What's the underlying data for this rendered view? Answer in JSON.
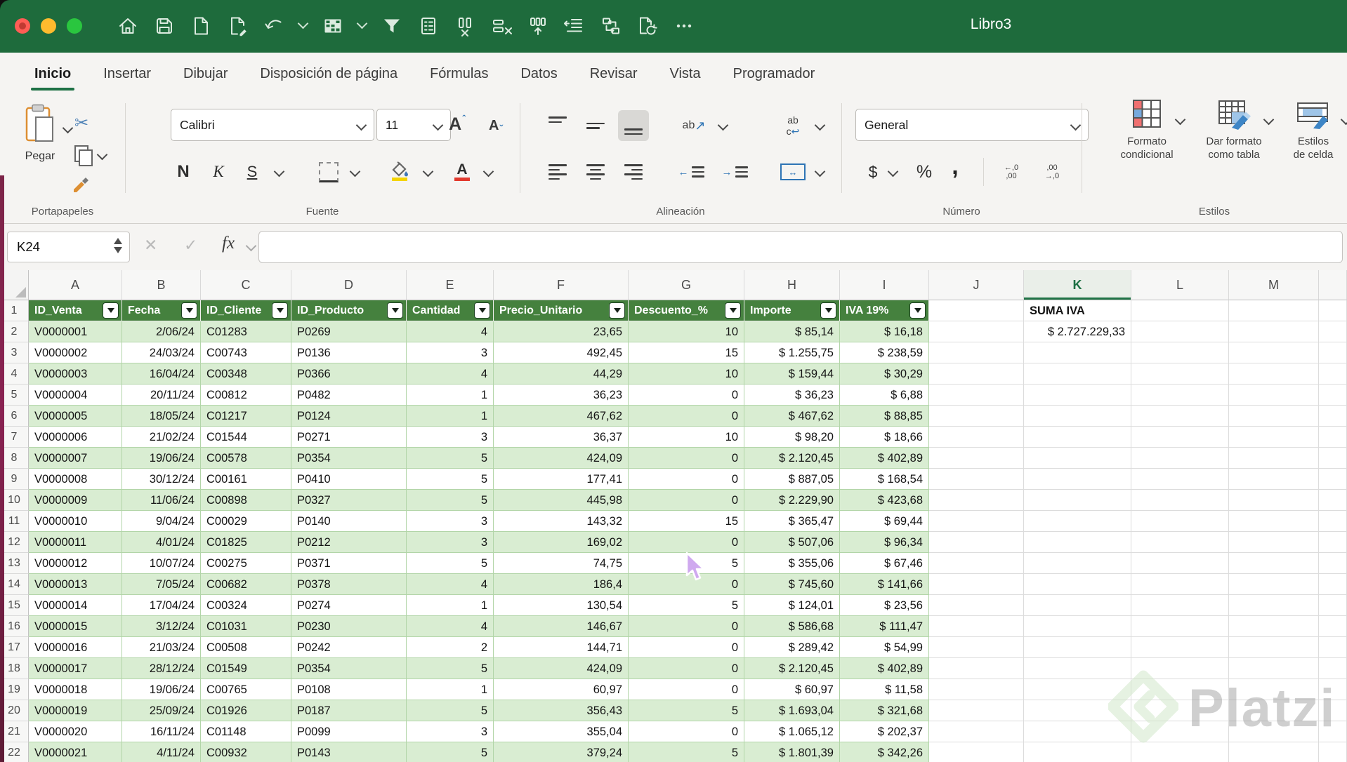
{
  "window": {
    "title": "Libro3"
  },
  "quick_toolbar": {
    "icons": [
      "home",
      "save",
      "new-document",
      "save-as",
      "undo",
      "border-grid",
      "filter",
      "form",
      "delete-column",
      "delete-row",
      "insert-column",
      "decrease-indent",
      "paste-transpose",
      "refresh-document",
      "more"
    ]
  },
  "ribbon_tabs": [
    {
      "label": "Inicio",
      "active": true
    },
    {
      "label": "Insertar",
      "active": false
    },
    {
      "label": "Dibujar",
      "active": false
    },
    {
      "label": "Disposición de página",
      "active": false
    },
    {
      "label": "Fórmulas",
      "active": false
    },
    {
      "label": "Datos",
      "active": false
    },
    {
      "label": "Revisar",
      "active": false
    },
    {
      "label": "Vista",
      "active": false
    },
    {
      "label": "Programador",
      "active": false
    }
  ],
  "ribbon": {
    "clipboard": {
      "paste": "Pegar",
      "group": "Portapapeles"
    },
    "font": {
      "family": "Calibri",
      "size": "11",
      "bold": "N",
      "italic": "K",
      "underline": "S",
      "grow": "A",
      "shrink": "A",
      "color": "A",
      "group": "Fuente"
    },
    "alignment": {
      "group": "Alineación"
    },
    "number": {
      "format": "General",
      "currency": "$",
      "percent": "%",
      "comma": ",",
      "group": "Número"
    },
    "styles": {
      "conditional": [
        "Formato",
        "condicional"
      ],
      "format_table": [
        "Dar formato",
        "como tabla"
      ],
      "cell_styles": [
        "Estilos",
        "de celda"
      ],
      "group": "Estilos"
    }
  },
  "icon_glyphs": {
    "orientation_ab": "ab",
    "wrap_ab": "ab",
    "wrap_c": "c",
    "dec_left_top": "←,0",
    "dec_left_bottom": ",00",
    "dec_right_top": ",00",
    "dec_right_bottom": "→,0",
    "cancel": "✕",
    "enter": "✓",
    "scissors": "✂",
    "orientation_arrow": "↗",
    "wrap_arrow": "↩",
    "merge_arrow": "↔",
    "outdent_arrow": "←",
    "indent_arrow": "→"
  },
  "formula_bar": {
    "name_box": "K24",
    "fx_label": "fx",
    "formula": ""
  },
  "grid": {
    "column_letters": [
      "A",
      "B",
      "C",
      "D",
      "E",
      "F",
      "G",
      "H",
      "I",
      "J",
      "K",
      "L",
      "M",
      ""
    ],
    "selected_column": "K",
    "row_count": 22,
    "table": {
      "headers": [
        "ID_Venta",
        "Fecha",
        "ID_Cliente",
        "ID_Producto",
        "Cantidad",
        "Precio_Unitario",
        "Descuento_%",
        "Importe",
        "IVA 19%"
      ],
      "rows": [
        [
          "V0000001",
          "2/06/24",
          "C01283",
          "P0269",
          "4",
          "23,65",
          "10",
          "$ 85,14",
          "$ 16,18"
        ],
        [
          "V0000002",
          "24/03/24",
          "C00743",
          "P0136",
          "3",
          "492,45",
          "15",
          "$ 1.255,75",
          "$ 238,59"
        ],
        [
          "V0000003",
          "16/04/24",
          "C00348",
          "P0366",
          "4",
          "44,29",
          "10",
          "$ 159,44",
          "$ 30,29"
        ],
        [
          "V0000004",
          "20/11/24",
          "C00812",
          "P0482",
          "1",
          "36,23",
          "0",
          "$ 36,23",
          "$ 6,88"
        ],
        [
          "V0000005",
          "18/05/24",
          "C01217",
          "P0124",
          "1",
          "467,62",
          "0",
          "$ 467,62",
          "$ 88,85"
        ],
        [
          "V0000006",
          "21/02/24",
          "C01544",
          "P0271",
          "3",
          "36,37",
          "10",
          "$ 98,20",
          "$ 18,66"
        ],
        [
          "V0000007",
          "19/06/24",
          "C00578",
          "P0354",
          "5",
          "424,09",
          "0",
          "$ 2.120,45",
          "$ 402,89"
        ],
        [
          "V0000008",
          "30/12/24",
          "C00161",
          "P0410",
          "5",
          "177,41",
          "0",
          "$ 887,05",
          "$ 168,54"
        ],
        [
          "V0000009",
          "11/06/24",
          "C00898",
          "P0327",
          "5",
          "445,98",
          "0",
          "$ 2.229,90",
          "$ 423,68"
        ],
        [
          "V0000010",
          "9/04/24",
          "C00029",
          "P0140",
          "3",
          "143,32",
          "15",
          "$ 365,47",
          "$ 69,44"
        ],
        [
          "V0000011",
          "4/01/24",
          "C01825",
          "P0212",
          "3",
          "169,02",
          "0",
          "$ 507,06",
          "$ 96,34"
        ],
        [
          "V0000012",
          "10/07/24",
          "C00275",
          "P0371",
          "5",
          "74,75",
          "5",
          "$ 355,06",
          "$ 67,46"
        ],
        [
          "V0000013",
          "7/05/24",
          "C00682",
          "P0378",
          "4",
          "186,4",
          "0",
          "$ 745,60",
          "$ 141,66"
        ],
        [
          "V0000014",
          "17/04/24",
          "C00324",
          "P0274",
          "1",
          "130,54",
          "5",
          "$ 124,01",
          "$ 23,56"
        ],
        [
          "V0000015",
          "3/12/24",
          "C01031",
          "P0230",
          "4",
          "146,67",
          "0",
          "$ 586,68",
          "$ 111,47"
        ],
        [
          "V0000016",
          "21/03/24",
          "C00508",
          "P0242",
          "2",
          "144,71",
          "0",
          "$ 289,42",
          "$ 54,99"
        ],
        [
          "V0000017",
          "28/12/24",
          "C01549",
          "P0354",
          "5",
          "424,09",
          "0",
          "$ 2.120,45",
          "$ 402,89"
        ],
        [
          "V0000018",
          "19/06/24",
          "C00765",
          "P0108",
          "1",
          "60,97",
          "0",
          "$ 60,97",
          "$ 11,58"
        ],
        [
          "V0000019",
          "25/09/24",
          "C01926",
          "P0187",
          "5",
          "356,43",
          "5",
          "$ 1.693,04",
          "$ 321,68"
        ],
        [
          "V0000020",
          "16/11/24",
          "C01148",
          "P0099",
          "3",
          "355,04",
          "0",
          "$ 1.065,12",
          "$ 202,37"
        ],
        [
          "V0000021",
          "4/11/24",
          "C00932",
          "P0143",
          "5",
          "379,24",
          "5",
          "$ 1.801,39",
          "$ 342,26"
        ]
      ]
    },
    "side": {
      "k1": "SUMA IVA",
      "k2": "$ 2.727.229,33"
    }
  },
  "watermark": {
    "text": "Platzi"
  },
  "colors": {
    "titlebar": "#1e6b3c",
    "accent": "#217346",
    "table_header": "#45813e",
    "band": "#d9edd2"
  }
}
